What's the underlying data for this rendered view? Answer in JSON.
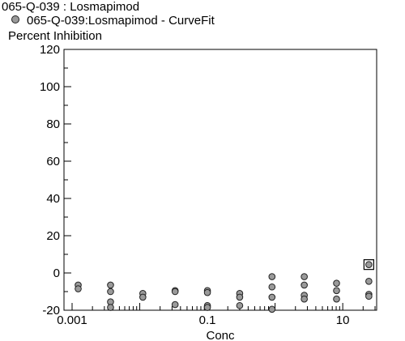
{
  "title": "065-Q-039  : Losmapimod",
  "legend": [
    {
      "label": "065-Q-039:Losmapimod - CurveFit",
      "color": "#9a9a9a"
    }
  ],
  "chart_data": {
    "type": "scatter",
    "title": "065-Q-039  : Losmapimod",
    "xlabel": "Conc",
    "ylabel": "Percent Inhibition",
    "xscale": "log",
    "xlim": [
      0.001,
      30
    ],
    "ylim": [
      -20,
      120
    ],
    "xticks": [
      0.001,
      0.1,
      10
    ],
    "xtick_labels": [
      "0.001",
      "0.1",
      "10"
    ],
    "yticks": [
      -20,
      0,
      20,
      40,
      60,
      80,
      100,
      120
    ],
    "ytick_labels": [
      "-20",
      "0",
      "20",
      "40",
      "60",
      "80",
      "100",
      "120"
    ],
    "series": [
      {
        "name": "065-Q-039:Losmapimod - CurveFit",
        "color": "#9a9a9a",
        "points": [
          {
            "x": 0.00123,
            "y": -6.5
          },
          {
            "x": 0.00123,
            "y": -8.5
          },
          {
            "x": 0.0037,
            "y": -6.5
          },
          {
            "x": 0.0037,
            "y": -10
          },
          {
            "x": 0.0037,
            "y": -15.5
          },
          {
            "x": 0.0037,
            "y": -18.5
          },
          {
            "x": 0.0111,
            "y": -11
          },
          {
            "x": 0.0111,
            "y": -13
          },
          {
            "x": 0.0333,
            "y": -9.5
          },
          {
            "x": 0.0333,
            "y": -10
          },
          {
            "x": 0.0333,
            "y": -17
          },
          {
            "x": 0.1,
            "y": -9.5
          },
          {
            "x": 0.1,
            "y": -10.5
          },
          {
            "x": 0.1,
            "y": -17.5
          },
          {
            "x": 0.1,
            "y": -18.5
          },
          {
            "x": 0.3,
            "y": -11
          },
          {
            "x": 0.3,
            "y": -13
          },
          {
            "x": 0.3,
            "y": -17.5
          },
          {
            "x": 0.9,
            "y": -2
          },
          {
            "x": 0.9,
            "y": -7.5
          },
          {
            "x": 0.9,
            "y": -13
          },
          {
            "x": 0.9,
            "y": -19.5
          },
          {
            "x": 2.7,
            "y": -2
          },
          {
            "x": 2.7,
            "y": -6.5
          },
          {
            "x": 2.7,
            "y": -12
          },
          {
            "x": 2.7,
            "y": -14
          },
          {
            "x": 8.1,
            "y": -5.5
          },
          {
            "x": 8.1,
            "y": -9.5
          },
          {
            "x": 8.1,
            "y": -14
          },
          {
            "x": 24.3,
            "y": 4.5,
            "boxed": true
          },
          {
            "x": 24.3,
            "y": -4.5
          },
          {
            "x": 24.3,
            "y": -11.5
          },
          {
            "x": 24.3,
            "y": -12.5
          }
        ]
      }
    ],
    "grid": false,
    "legend_position": "top-left"
  }
}
